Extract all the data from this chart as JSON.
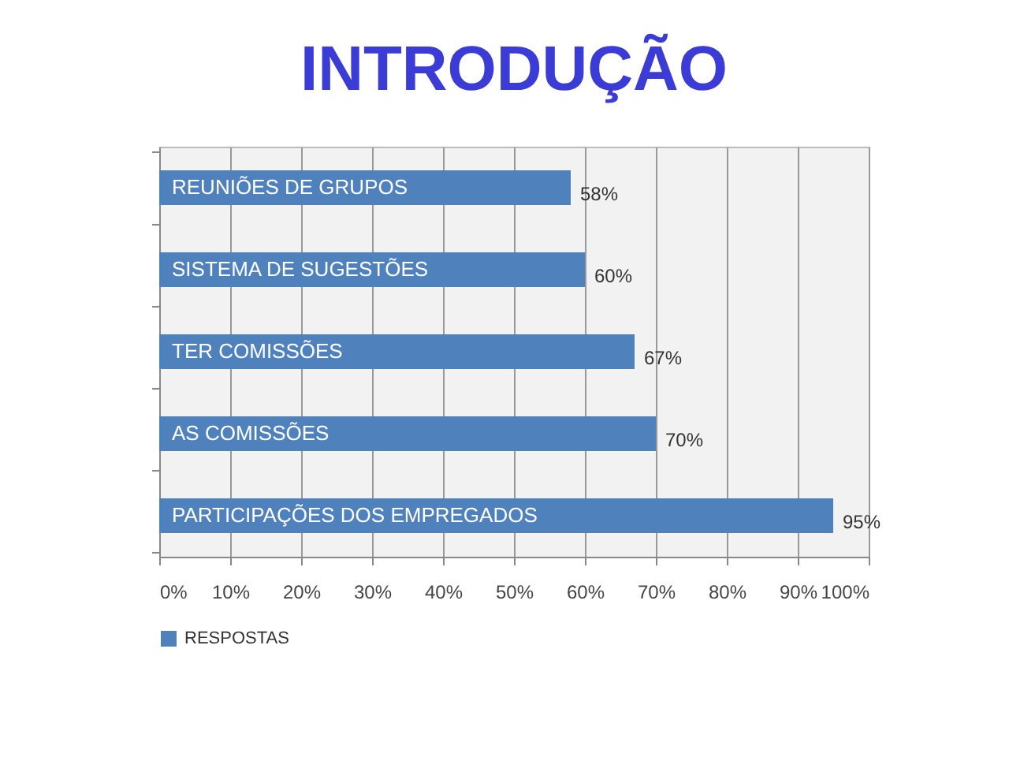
{
  "chart_data": {
    "type": "bar",
    "orientation": "horizontal",
    "title": "INTRODUÇÃO",
    "categories": [
      "REUNIÕES DE GRUPOS",
      "SISTEMA DE SUGESTÕES",
      "TER COMISSÕES",
      "AS COMISSÕES",
      "PARTICIPAÇÕES DOS EMPREGADOS"
    ],
    "series": [
      {
        "name": "RESPOSTAS",
        "color": "#4f81bd",
        "values": [
          58,
          60,
          67,
          70,
          95
        ],
        "value_labels": [
          "58%",
          "60%",
          "67%",
          "70%",
          "95%"
        ]
      }
    ],
    "xlim": [
      0,
      100
    ],
    "xticks": [
      {
        "value": 0,
        "label": "0%"
      },
      {
        "value": 10,
        "label": "10%"
      },
      {
        "value": 20,
        "label": "20%"
      },
      {
        "value": 30,
        "label": "30%"
      },
      {
        "value": 40,
        "label": "40%"
      },
      {
        "value": 50,
        "label": "50%"
      },
      {
        "value": 60,
        "label": "60%"
      },
      {
        "value": 70,
        "label": "70%"
      },
      {
        "value": 80,
        "label": "80%"
      },
      {
        "value": 90,
        "label": "90%"
      },
      {
        "value": 100,
        "label": "100%"
      }
    ],
    "grid": "x",
    "legend": "bottom"
  }
}
